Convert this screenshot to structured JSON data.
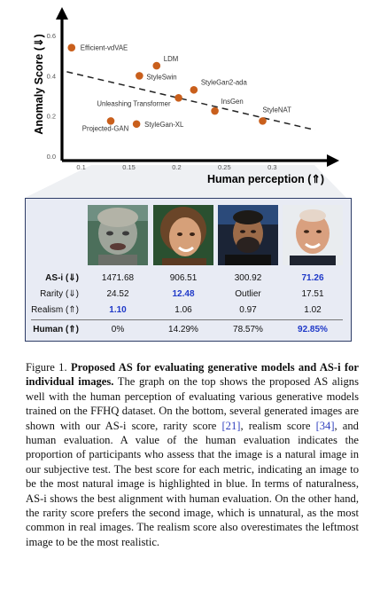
{
  "chart_data": {
    "type": "scatter",
    "xlabel": "Human perception (⇑)",
    "ylabel": "Anomaly Score (⇓)",
    "x_ticks": [
      "0.1",
      "0.15",
      "0.2",
      "0.25",
      "0.3"
    ],
    "y_ticks": [
      "0.0",
      "0.2",
      "0.4",
      "0.6"
    ],
    "xlim": [
      0.08,
      0.36
    ],
    "ylim": [
      0.0,
      0.68
    ],
    "points": [
      {
        "label": "Efficient-vdVAE",
        "x": 0.09,
        "y": 0.54
      },
      {
        "label": "LDM",
        "x": 0.179,
        "y": 0.45
      },
      {
        "label": "StyleSwin",
        "x": 0.161,
        "y": 0.4
      },
      {
        "label": "StyleGan2-ada",
        "x": 0.218,
        "y": 0.33
      },
      {
        "label": "Unleashing Transformer",
        "x": 0.202,
        "y": 0.29
      },
      {
        "label": "InsGen",
        "x": 0.24,
        "y": 0.225
      },
      {
        "label": "StyleNAT",
        "x": 0.29,
        "y": 0.175
      },
      {
        "label": "Projected-GAN",
        "x": 0.131,
        "y": 0.175
      },
      {
        "label": "StyleGan-XL",
        "x": 0.158,
        "y": 0.16
      }
    ],
    "trend": {
      "x": [
        0.085,
        0.345
      ],
      "y": [
        0.42,
        0.13
      ]
    },
    "point_color": "#c95f1c"
  },
  "table": {
    "rows": [
      {
        "label": "AS-i (⇓)",
        "values": [
          "1471.68",
          "906.51",
          "300.92",
          "71.26"
        ],
        "best": 3
      },
      {
        "label": "Rarity (⇓)",
        "values": [
          "24.52",
          "12.48",
          "Outlier",
          "17.51"
        ],
        "best": 1
      },
      {
        "label": "Realism (⇑)",
        "values": [
          "1.10",
          "1.06",
          "0.97",
          "1.02"
        ],
        "best": 0
      },
      {
        "label": "Human (⇑)",
        "values": [
          "0%",
          "14.29%",
          "78.57%",
          "92.85%"
        ],
        "best": 3
      }
    ]
  },
  "caption": {
    "figure_label": "Figure 1.",
    "bold_title": "Proposed AS for evaluating generative models and AS-i for individual images.",
    "text_a": "The graph on the top shows the proposed AS aligns well with the human perception of evaluating various generative models trained on the FFHQ dataset. On the bottom, several generated images are shown with our AS-i score, rarity score",
    "cite_1": "[21]",
    "text_b": ", realism score",
    "cite_2": "[34]",
    "text_c": ", and human evaluation. A value of the human evaluation indicates the proportion of participants who assess that the image is a natural image in our subjective test. The best score for each metric, indicating an image to be the most natural image is highlighted in blue. In terms of naturalness, AS-i shows the best alignment with human evaluation. On the other hand, the rarity score prefers the second image, which is unnatural, as the most common in real images. The realism score also overestimates the leftmost image to be the most realistic."
  }
}
